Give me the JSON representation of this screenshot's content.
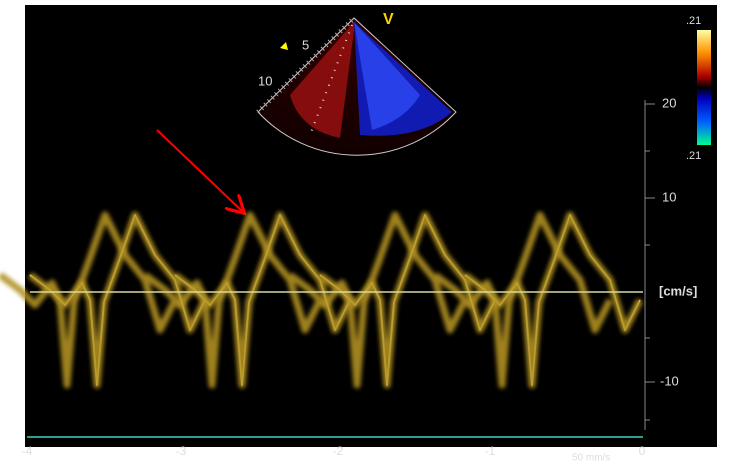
{
  "sector": {
    "mode_label": "V",
    "depth_labels": [
      "5",
      "10"
    ]
  },
  "color_bar": {
    "top_label": ".21",
    "bottom_label": ".21"
  },
  "velocity_axis": {
    "labels": [
      "20",
      "10",
      "[cm/s]",
      "-10"
    ]
  },
  "time_axis": {
    "labels": [
      "-4",
      "-3",
      "-2",
      "-1",
      "0"
    ],
    "sweep_speed": "50 mm/s"
  }
}
